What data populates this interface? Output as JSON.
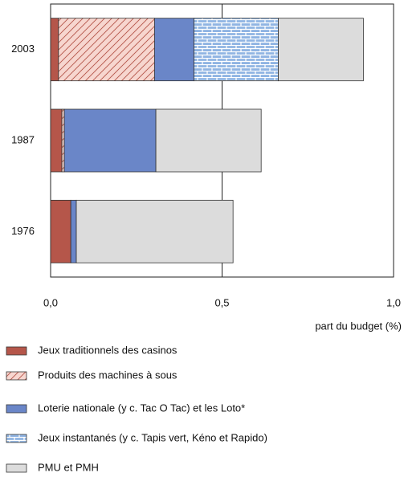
{
  "chart_data": {
    "type": "stacked_barh",
    "categories": [
      "2003",
      "1987",
      "1976"
    ],
    "series": [
      {
        "name": "Jeux traditionnels des casinos",
        "color": "#b5564a",
        "pattern": "solid",
        "values": [
          0.023,
          0.033,
          0.059
        ]
      },
      {
        "name": "Produits des machines à sous",
        "color": "#f7d6cf",
        "pattern": "hatch",
        "values": [
          0.28,
          0.007,
          0
        ]
      },
      {
        "name": "Loterie nationale (y c. Tac  O Tac) et les Loto*",
        "color": "#6a86c8",
        "pattern": "solid",
        "values": [
          0.115,
          0.267,
          0.016
        ]
      },
      {
        "name": "Jeux instantanés (y c. Tapis vert, Kéno et Rapido)",
        "color": "#8fb4e3",
        "pattern": "bricks",
        "values": [
          0.246,
          0,
          0
        ]
      },
      {
        "name": "PMU et PMH",
        "color": "#dcdcdc",
        "pattern": "solid",
        "values": [
          0.248,
          0.307,
          0.457
        ]
      }
    ],
    "xlim": [
      0,
      1
    ],
    "xticks": [
      {
        "value": 0,
        "label": "0,0"
      },
      {
        "value": 0.5,
        "label": "0,5"
      },
      {
        "value": 1,
        "label": "1,0"
      }
    ],
    "xlabel": "part du budget (%)",
    "grid": true
  }
}
